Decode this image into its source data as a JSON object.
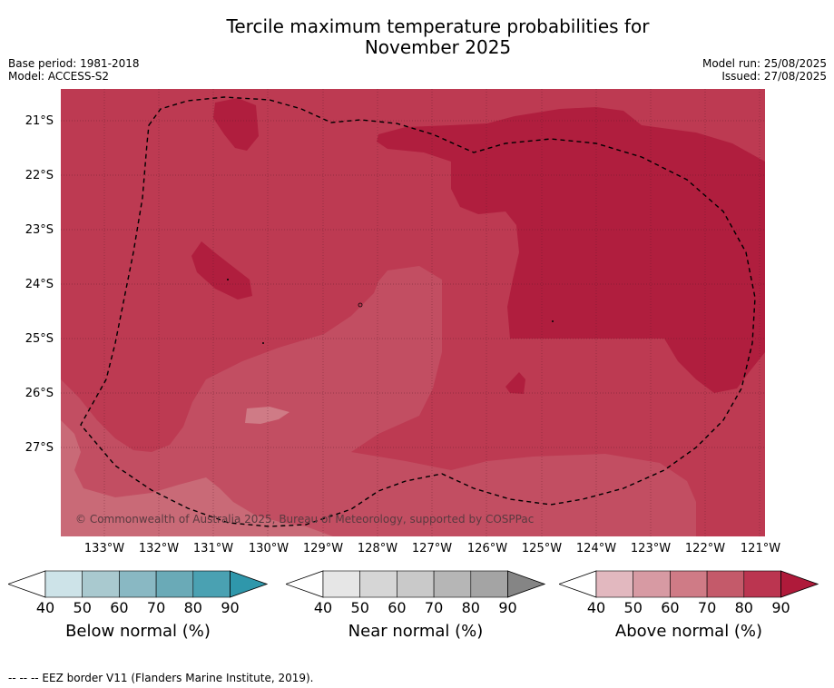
{
  "title_line1": "Tercile maximum temperature probabilities for",
  "title_line2": "November 2025",
  "meta": {
    "base_period": "Base period: 1981-2018",
    "model": "Model: ACCESS-S2",
    "model_run": "Model run: 25/08/2025",
    "issued": "Issued: 27/08/2025"
  },
  "copyright": "© Commonwealth of Australia 2025, Bureau of Meteorology, supported by COSPPac",
  "lat_labels": [
    "21°S",
    "22°S",
    "23°S",
    "24°S",
    "25°S",
    "26°S",
    "27°S"
  ],
  "lon_labels": [
    "133°W",
    "132°W",
    "131°W",
    "130°W",
    "129°W",
    "128°W",
    "127°W",
    "126°W",
    "125°W",
    "124°W",
    "123°W",
    "122°W",
    "121°W"
  ],
  "legends": [
    {
      "label": "Below normal (%)",
      "ticks": [
        "40",
        "50",
        "60",
        "70",
        "80",
        "90"
      ],
      "colors": [
        "#cde3e8",
        "#a9c9cf",
        "#89b8c3",
        "#6aaab7",
        "#4aa1b2",
        "#2f97ab"
      ]
    },
    {
      "label": "Near normal (%)",
      "ticks": [
        "40",
        "50",
        "60",
        "70",
        "80",
        "90"
      ],
      "colors": [
        "#e6e6e6",
        "#d6d6d6",
        "#c9c9c9",
        "#b6b6b6",
        "#a4a4a4",
        "#858585"
      ]
    },
    {
      "label": "Above normal (%)",
      "ticks": [
        "40",
        "50",
        "60",
        "70",
        "80",
        "90"
      ],
      "colors": [
        "#e2b8bf",
        "#d79aa3",
        "#cf7b86",
        "#c45a6a",
        "#bb3550",
        "#af1a3a"
      ]
    }
  ],
  "footnote": "--  --  -- EEZ border V11 (Flanders Marine Institute, 2019)."
}
